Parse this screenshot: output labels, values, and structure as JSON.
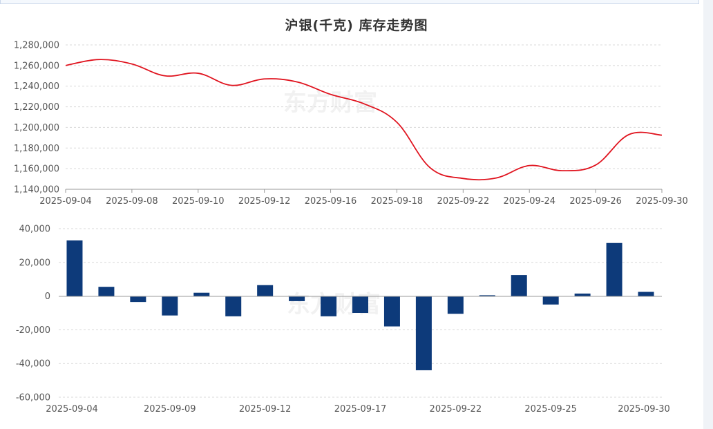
{
  "title": "沪银(千克) 库存走势图",
  "watermark": "东方财富",
  "colors": {
    "line": "#e0141f",
    "bar": "#0d3a7a",
    "text": "#333333"
  },
  "chart_data": [
    {
      "type": "line",
      "title": "沪银(千克) 库存走势图",
      "ylim": [
        1140000,
        1280000
      ],
      "yticks": [
        1140000,
        1160000,
        1180000,
        1200000,
        1220000,
        1240000,
        1260000,
        1280000
      ],
      "ytick_labels": [
        "1,140,000",
        "1,160,000",
        "1,180,000",
        "1,200,000",
        "1,220,000",
        "1,240,000",
        "1,260,000",
        "1,280,000"
      ],
      "xtick_labels": [
        "2025-09-04",
        "2025-09-08",
        "2025-09-10",
        "2025-09-12",
        "2025-09-16",
        "2025-09-18",
        "2025-09-22",
        "2025-09-24",
        "2025-09-26",
        "2025-09-30"
      ],
      "x": [
        "2025-09-04",
        "2025-09-05",
        "2025-09-08",
        "2025-09-09",
        "2025-09-10",
        "2025-09-11",
        "2025-09-12",
        "2025-09-15",
        "2025-09-16",
        "2025-09-17",
        "2025-09-18",
        "2025-09-19",
        "2025-09-22",
        "2025-09-23",
        "2025-09-24",
        "2025-09-25",
        "2025-09-26",
        "2025-09-29",
        "2025-09-30"
      ],
      "values": [
        1260000,
        1265800,
        1261500,
        1250000,
        1252500,
        1240800,
        1247000,
        1244000,
        1232000,
        1223000,
        1205000,
        1161000,
        1150500,
        1151000,
        1163000,
        1158000,
        1163500,
        1193000,
        1192500
      ]
    },
    {
      "type": "bar",
      "ylim": [
        -60000,
        40000
      ],
      "yticks": [
        -60000,
        -40000,
        -20000,
        0,
        20000,
        40000
      ],
      "ytick_labels": [
        "-60,000",
        "-40,000",
        "-20,000",
        "0",
        "20,000",
        "40,000"
      ],
      "xtick_labels": [
        "2025-09-04",
        "2025-09-09",
        "2025-09-12",
        "2025-09-17",
        "2025-09-22",
        "2025-09-25",
        "2025-09-30"
      ],
      "values": [
        33000,
        5500,
        -3500,
        -11500,
        2000,
        -12000,
        6500,
        -3000,
        -12000,
        -10000,
        -18000,
        -44000,
        -10500,
        500,
        12500,
        -5000,
        1500,
        31500,
        2500
      ]
    }
  ]
}
